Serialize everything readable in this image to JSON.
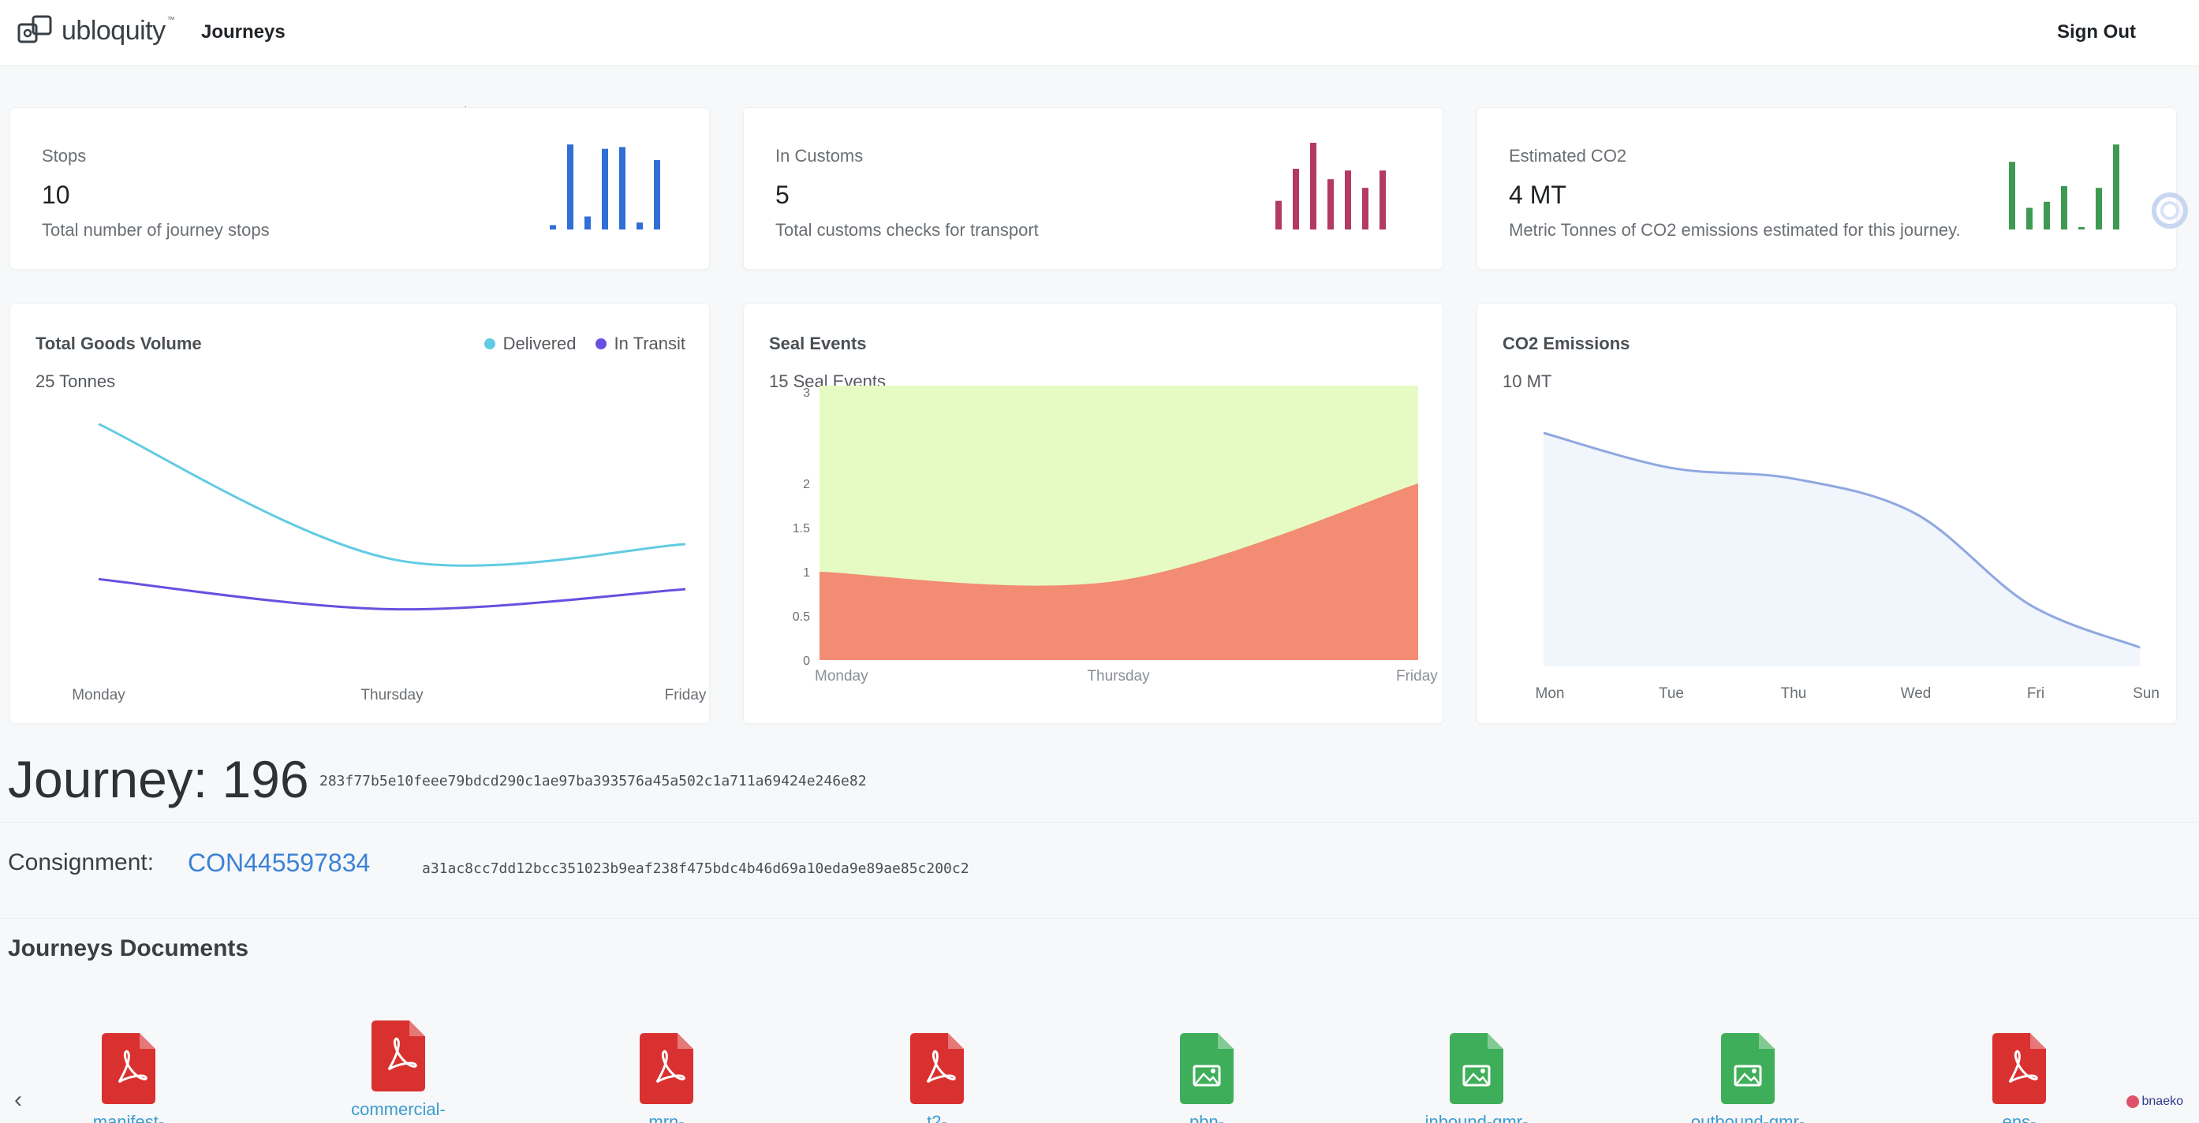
{
  "header": {
    "logo_text": "ubloquity",
    "logo_tm": "™",
    "nav_journeys": "Journeys",
    "sign_out": "Sign Out"
  },
  "stats": [
    {
      "title": "Stops",
      "value": "10",
      "description": "Total number of journey stops",
      "color": "#2f6fd6",
      "bars": [
        0.05,
        0.98,
        0.15,
        0.93,
        0.95,
        0.08,
        0.8
      ]
    },
    {
      "title": "In Customs",
      "value": "5",
      "description": "Total customs checks for transport",
      "color": "#b33a62",
      "bars": [
        0.33,
        0.7,
        1.0,
        0.58,
        0.68,
        0.48,
        0.68
      ]
    },
    {
      "title": "Estimated CO2",
      "value": "4 MT",
      "description": "Metric Tonnes of CO2 emissions estimated for this journey.",
      "color": "#3e9a52",
      "bars": [
        0.78,
        0.25,
        0.32,
        0.5,
        0.02,
        0.48,
        0.98
      ]
    }
  ],
  "charts": {
    "goods": {
      "title": "Total Goods Volume",
      "subtitle": "25 Tonnes",
      "legend": [
        {
          "label": "Delivered",
          "color": "#62cbe3"
        },
        {
          "label": "In Transit",
          "color": "#6a4fe0"
        }
      ]
    },
    "seal": {
      "title": "Seal Events",
      "subtitle": "15 Seal Events"
    },
    "co2": {
      "title": "CO2 Emissions",
      "subtitle": "10 MT"
    }
  },
  "chart_data": [
    {
      "type": "line",
      "title": "Total Goods Volume",
      "categories": [
        "Monday",
        "Thursday",
        "Friday"
      ],
      "series": [
        {
          "name": "Delivered",
          "values": [
            25,
            11.5,
            13
          ]
        },
        {
          "name": "In Transit",
          "values": [
            9.5,
            6.5,
            8.5
          ]
        }
      ],
      "ylim": [
        0,
        26
      ],
      "legend": "top-right",
      "grid": false
    },
    {
      "type": "area",
      "title": "Seal Events",
      "categories": [
        "Monday",
        "Thursday",
        "Friday"
      ],
      "series": [
        {
          "name": "",
          "values": [
            1.0,
            0.9,
            2.0
          ]
        },
        {
          "name": "",
          "values": [
            3.0,
            3.0,
            3.0
          ]
        }
      ],
      "yticks": [
        "0",
        "0.5",
        "1",
        "1.5",
        "2",
        "3"
      ],
      "ylim": [
        0,
        3
      ],
      "colors": [
        "#f28c73",
        "#e6fbc3"
      ],
      "grid": false
    },
    {
      "type": "area",
      "title": "CO2 Emissions",
      "categories": [
        "Mon",
        "Tue",
        "Thu",
        "Wed",
        "Fri",
        "Sun"
      ],
      "series": [
        {
          "name": "",
          "values": [
            9.0,
            7.7,
            7.3,
            6.0,
            2.6,
            1.0
          ]
        }
      ],
      "ylim": [
        0,
        10
      ],
      "colors": [
        "#8fa8e0"
      ],
      "grid": false
    }
  ],
  "journey": {
    "title": "Journey: 196",
    "hash": "283f77b5e10feee79bdcd290c1ae97ba393576a45a502c1a711a69424e246e82",
    "consignment_label": "Consignment:",
    "consignment_id": "CON445597834",
    "consignment_hash": "a31ac8cc7dd12bcc351023b9eaf238f475bdc4b46d69a10eda9e89ae85c200c2"
  },
  "documents": {
    "title": "Journeys Documents",
    "scroll_left": "‹",
    "items": [
      {
        "name": "manifest-",
        "type": "pdf",
        "color": "#d9312f"
      },
      {
        "name": "commercial-",
        "type": "pdf",
        "color": "#d9312f"
      },
      {
        "name": "mrn-",
        "type": "pdf",
        "color": "#d9312f"
      },
      {
        "name": "t2-",
        "type": "pdf",
        "color": "#d9312f"
      },
      {
        "name": "pbn-",
        "type": "image",
        "color": "#3fae5a"
      },
      {
        "name": "inbound-gmr-",
        "type": "image",
        "color": "#3fae5a"
      },
      {
        "name": "outbound-gmr-",
        "type": "image",
        "color": "#3fae5a"
      },
      {
        "name": "ens-",
        "type": "pdf",
        "color": "#d9312f"
      }
    ]
  },
  "watermark": "bnaeko"
}
